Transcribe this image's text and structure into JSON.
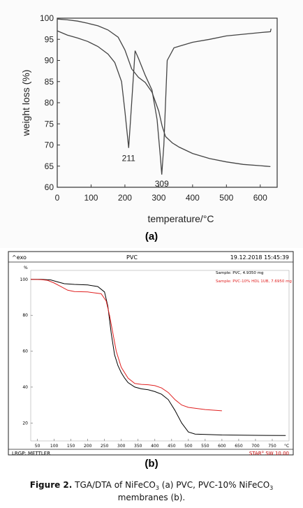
{
  "panel_labels": {
    "a": "(a)",
    "b": "(b)"
  },
  "caption": {
    "figure": "Figure 2.",
    "text_before": " TGA/DTA of NiFeCO",
    "sub1": "3",
    "text_middle": " (a) PVC, PVC-10% NiFeCO",
    "sub2": "3",
    "text_after": " membranes (b)."
  },
  "chart_data": [
    {
      "type": "line",
      "panel": "a",
      "xlabel": "temperature/°C",
      "ylabel": "weight loss (%)",
      "xlim": [
        0,
        650
      ],
      "ylim": [
        60,
        100
      ],
      "xticks": [
        0,
        100,
        200,
        300,
        400,
        500,
        600
      ],
      "yticks": [
        60,
        65,
        70,
        75,
        80,
        85,
        90,
        95,
        100
      ],
      "annotations": [
        {
          "text": "211",
          "x": 211,
          "y": 68.5
        },
        {
          "text": "309",
          "x": 309,
          "y": 62.5
        }
      ],
      "series": [
        {
          "color": "#444444",
          "x": [
            0,
            30,
            60,
            90,
            120,
            150,
            180,
            200,
            220,
            240,
            260,
            280,
            300,
            310,
            320,
            340,
            360,
            400,
            450,
            500,
            550,
            600,
            630
          ],
          "y": [
            99.8,
            99.6,
            99.3,
            98.8,
            98.2,
            97.2,
            95.5,
            92.5,
            88.0,
            86.0,
            84.8,
            82.5,
            78.0,
            74.5,
            72.0,
            70.5,
            69.5,
            68.0,
            66.8,
            66.0,
            65.4,
            65.1,
            64.9
          ]
        },
        {
          "color": "#444444",
          "x": [
            0,
            30,
            60,
            90,
            120,
            150,
            170,
            190,
            200,
            211,
            220,
            230,
            240,
            260,
            280,
            295,
            305,
            309,
            315,
            325,
            345,
            400,
            450,
            500,
            550,
            600,
            630,
            632
          ],
          "y": [
            97.0,
            96.0,
            95.3,
            94.5,
            93.3,
            91.5,
            89.5,
            85.0,
            78.0,
            69.3,
            80.0,
            92.3,
            90.5,
            86.5,
            83.0,
            76.0,
            67.0,
            63.0,
            70.0,
            90.0,
            93.0,
            94.3,
            95.0,
            95.8,
            96.2,
            96.6,
            96.8,
            97.5
          ]
        }
      ]
    },
    {
      "type": "line",
      "panel": "b",
      "header": {
        "left": "^exo",
        "center": "PVC",
        "right": "19.12.2018 15:45:39"
      },
      "ylabel": "%",
      "xunit": "°C",
      "xlim": [
        30,
        800
      ],
      "ylim": [
        10,
        105
      ],
      "xticks": [
        50,
        100,
        150,
        200,
        250,
        300,
        350,
        400,
        450,
        500,
        550,
        600,
        650,
        700,
        750
      ],
      "yticks": [
        20,
        40,
        60,
        80,
        100
      ],
      "footer": {
        "left": "LRGP: METTLER",
        "right": "STAR° SW 10.00"
      },
      "series": [
        {
          "name": "Sample: PVC, 4.9350 mg",
          "color": "#000000",
          "x": [
            30,
            60,
            90,
            110,
            130,
            160,
            200,
            230,
            250,
            260,
            270,
            280,
            290,
            300,
            310,
            320,
            340,
            360,
            380,
            400,
            420,
            440,
            460,
            480,
            500,
            520,
            600,
            700,
            790
          ],
          "y": [
            100.0,
            100.0,
            99.7,
            98.6,
            97.6,
            97.2,
            96.9,
            96.0,
            93.0,
            85.0,
            70.0,
            58.0,
            52.0,
            48.0,
            45.0,
            42.5,
            40.0,
            39.0,
            38.5,
            37.5,
            36.0,
            33.0,
            27.0,
            20.0,
            15.0,
            13.8,
            13.3,
            13.1,
            13.0
          ]
        },
        {
          "name": "Sample: PVC-10% HDL 1UB, 7.6950 mg",
          "color": "#e02020",
          "x": [
            30,
            60,
            80,
            100,
            120,
            140,
            160,
            200,
            240,
            255,
            265,
            275,
            285,
            300,
            320,
            340,
            360,
            380,
            400,
            420,
            440,
            460,
            480,
            500,
            550,
            600
          ],
          "y": [
            100.0,
            99.9,
            99.5,
            98.0,
            96.0,
            94.0,
            93.2,
            93.0,
            92.0,
            88.0,
            80.0,
            70.0,
            60.0,
            51.0,
            45.0,
            42.0,
            41.5,
            41.3,
            40.8,
            39.5,
            37.0,
            33.0,
            30.0,
            28.7,
            27.5,
            26.8
          ]
        }
      ]
    }
  ]
}
